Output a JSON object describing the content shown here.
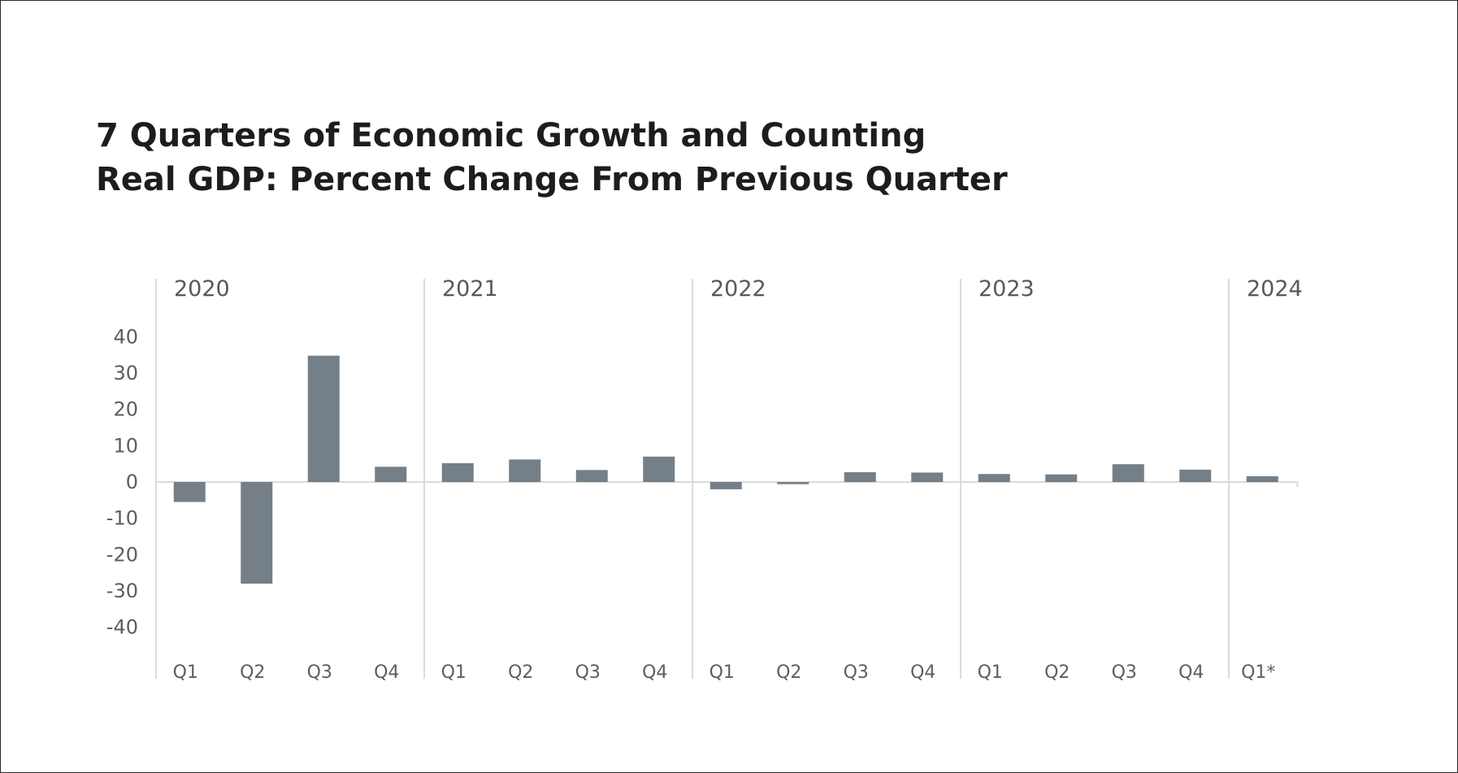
{
  "chart_data": {
    "type": "bar",
    "title": "7 Quarters of Economic Growth and Counting",
    "subtitle": "Real GDP: Percent Change From Previous Quarter",
    "xlabel": "",
    "ylabel": "",
    "ylim": [
      -50,
      45
    ],
    "yticks": [
      40,
      30,
      20,
      10,
      0,
      -10,
      -20,
      -30,
      -40
    ],
    "grid": false,
    "bar_color": "#747f87",
    "separator_color": "#d9dbdd",
    "years": [
      {
        "label": "2020",
        "quarters": [
          "Q1",
          "Q2",
          "Q3",
          "Q4"
        ]
      },
      {
        "label": "2021",
        "quarters": [
          "Q1",
          "Q2",
          "Q3",
          "Q4"
        ]
      },
      {
        "label": "2022",
        "quarters": [
          "Q1",
          "Q2",
          "Q3",
          "Q4"
        ]
      },
      {
        "label": "2023",
        "quarters": [
          "Q1",
          "Q2",
          "Q3",
          "Q4"
        ]
      },
      {
        "label": "2024",
        "quarters": [
          "Q1*"
        ]
      }
    ],
    "categories": [
      "Q1",
      "Q2",
      "Q3",
      "Q4",
      "Q1",
      "Q2",
      "Q3",
      "Q4",
      "Q1",
      "Q2",
      "Q3",
      "Q4",
      "Q1",
      "Q2",
      "Q3",
      "Q4",
      "Q1*"
    ],
    "values": [
      -5.5,
      -28.0,
      34.8,
      4.2,
      5.2,
      6.2,
      3.3,
      7.0,
      -2.0,
      -0.6,
      2.7,
      2.6,
      2.2,
      2.1,
      4.9,
      3.4,
      1.6
    ]
  }
}
